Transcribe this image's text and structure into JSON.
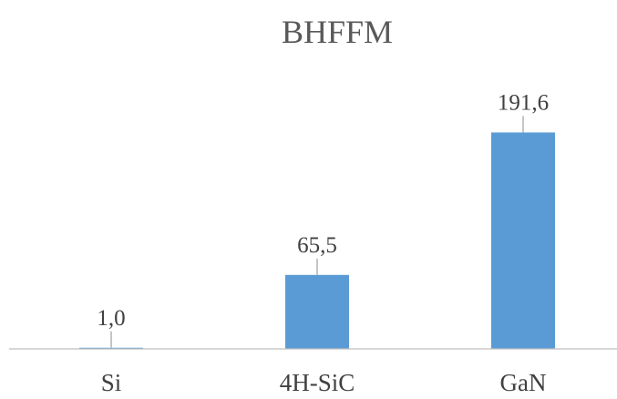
{
  "chart_data": {
    "type": "bar",
    "title": "BHFFM",
    "xlabel": "",
    "ylabel": "",
    "categories": [
      "Si",
      "4H-SiC",
      "GaN"
    ],
    "values": [
      1.0,
      65.5,
      191.6
    ],
    "value_labels": [
      "1,0",
      "65,5",
      "191,6"
    ],
    "ylim": [
      0,
      240
    ],
    "grid": false,
    "legend": "none",
    "bar_color": "#5b9bd5",
    "label_leader_lines": true
  }
}
